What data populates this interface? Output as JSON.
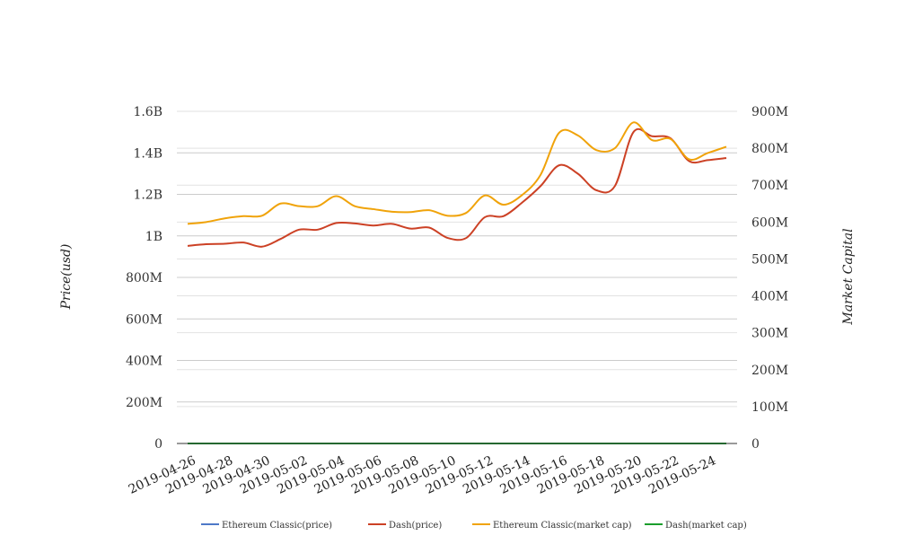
{
  "chart_data": {
    "type": "line",
    "x": [
      "2019-04-26",
      "2019-04-27",
      "2019-04-28",
      "2019-04-29",
      "2019-04-30",
      "2019-05-01",
      "2019-05-02",
      "2019-05-03",
      "2019-05-04",
      "2019-05-05",
      "2019-05-06",
      "2019-05-07",
      "2019-05-08",
      "2019-05-09",
      "2019-05-10",
      "2019-05-11",
      "2019-05-12",
      "2019-05-13",
      "2019-05-14",
      "2019-05-15",
      "2019-05-16",
      "2019-05-17",
      "2019-05-18",
      "2019-05-19",
      "2019-05-20",
      "2019-05-21",
      "2019-05-22",
      "2019-05-23",
      "2019-05-24",
      "2019-05-25"
    ],
    "x_tick_labels": [
      "2019-04-26",
      "2019-04-28",
      "2019-04-30",
      "2019-05-02",
      "2019-05-04",
      "2019-05-06",
      "2019-05-08",
      "2019-05-10",
      "2019-05-12",
      "2019-05-14",
      "2019-05-16",
      "2019-05-18",
      "2019-05-20",
      "2019-05-22",
      "2019-05-24"
    ],
    "y_left": {
      "label": "Price(usd)",
      "range": [
        0,
        1600000000
      ],
      "ticks": [
        0,
        200000000,
        400000000,
        600000000,
        800000000,
        1000000000,
        1200000000,
        1400000000,
        1600000000
      ],
      "tick_labels": [
        "0",
        "200M",
        "400M",
        "600M",
        "800M",
        "1B",
        "1.2B",
        "1.4B",
        "1.6B"
      ]
    },
    "y_right": {
      "label": "Market Capital",
      "range": [
        0,
        900000000
      ],
      "ticks": [
        0,
        100000000,
        200000000,
        300000000,
        400000000,
        500000000,
        600000000,
        700000000,
        800000000,
        900000000
      ],
      "tick_labels": [
        "0",
        "100M",
        "200M",
        "300M",
        "400M",
        "500M",
        "600M",
        "700M",
        "800M",
        "900M"
      ]
    },
    "grid": true,
    "legend_position": "bottom",
    "series": [
      {
        "name": "Ethereum Classic(price)",
        "axis": "left",
        "color": "#4e79c8",
        "values": [
          6.0,
          6.1,
          6.1,
          6.2,
          6.1,
          6.2,
          6.5,
          6.4,
          6.5,
          6.3,
          6.3,
          6.2,
          6.3,
          6.2,
          6.2,
          6.4,
          6.9,
          6.7,
          7.0,
          7.5,
          8.8,
          8.7,
          8.1,
          8.0,
          8.9,
          8.5,
          8.6,
          8.1,
          8.3,
          8.5
        ]
      },
      {
        "name": "Dash(price)",
        "axis": "left",
        "color": "#cc4125",
        "values": [
          952000000,
          960000000,
          962000000,
          968000000,
          948000000,
          985000000,
          1030000000,
          1030000000,
          1062000000,
          1060000000,
          1050000000,
          1058000000,
          1035000000,
          1040000000,
          990000000,
          990000000,
          1090000000,
          1095000000,
          1160000000,
          1240000000,
          1340000000,
          1300000000,
          1220000000,
          1240000000,
          1500000000,
          1480000000,
          1470000000,
          1360000000,
          1365000000,
          1375000000
        ]
      },
      {
        "name": "Ethereum Classic(market cap)",
        "axis": "right",
        "color": "#f0a30a",
        "values": [
          595000000,
          600000000,
          610000000,
          616000000,
          617000000,
          650000000,
          643000000,
          643000000,
          670000000,
          643000000,
          635000000,
          628000000,
          627000000,
          632000000,
          617000000,
          625000000,
          672000000,
          647000000,
          673000000,
          728000000,
          842000000,
          835000000,
          795000000,
          800000000,
          870000000,
          822000000,
          825000000,
          770000000,
          787000000,
          804000000
        ]
      },
      {
        "name": "Dash(market cap)",
        "axis": "right",
        "color": "#1a9e2c",
        "values": [
          8.0,
          8.1,
          8.1,
          8.2,
          8.0,
          8.3,
          8.7,
          8.7,
          8.9,
          8.9,
          8.8,
          8.9,
          8.7,
          8.8,
          8.3,
          8.3,
          9.2,
          9.2,
          9.8,
          10.5,
          11.3,
          11.0,
          10.3,
          10.5,
          12.7,
          12.5,
          12.4,
          11.5,
          11.5,
          11.6
        ]
      }
    ]
  }
}
